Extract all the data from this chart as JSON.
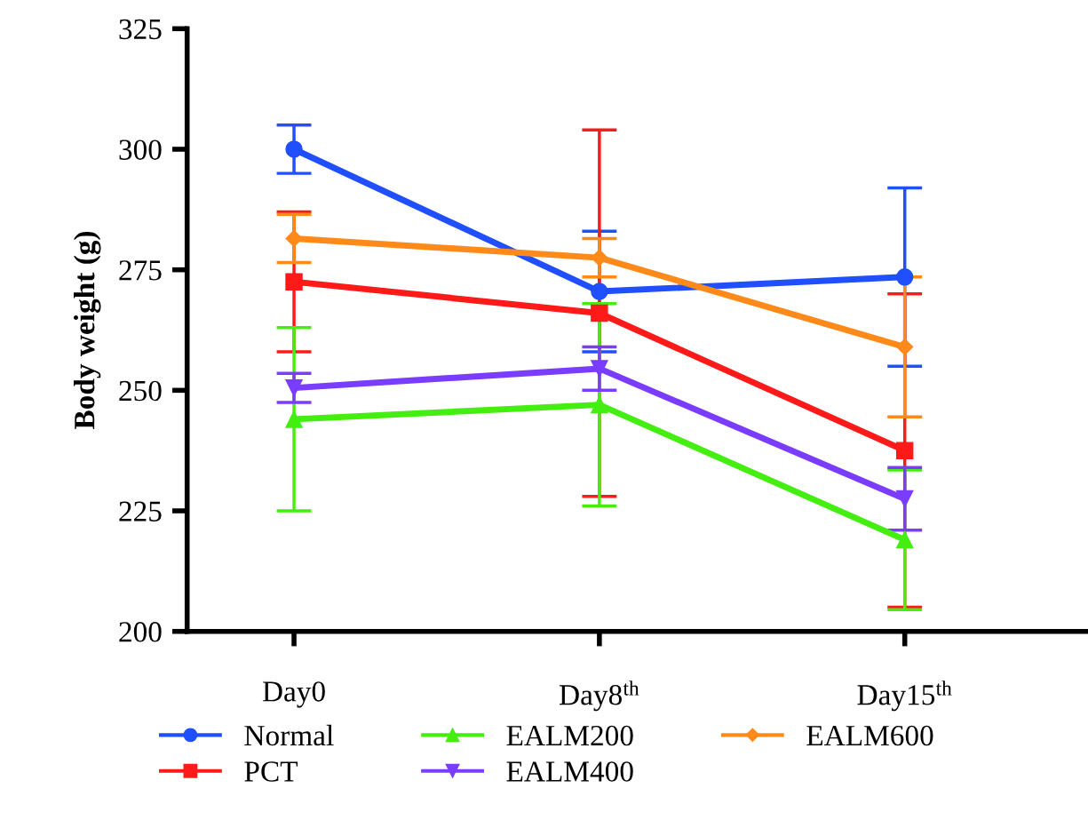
{
  "chart_data": {
    "type": "line",
    "ylabel": "Body weight (g)",
    "categories": [
      "Day0",
      "Day8$^{th}$",
      "Day15$^{th}$"
    ],
    "ylim": [
      200,
      325
    ],
    "yticks": [
      200,
      225,
      250,
      275,
      300,
      325
    ],
    "grid": false,
    "legend": "bottom",
    "series": [
      {
        "name": "Normal",
        "color": "#1f4fff",
        "marker": "circle",
        "values": [
          300,
          270.5,
          273.5
        ],
        "errors": [
          5,
          12.5,
          18.5
        ]
      },
      {
        "name": "PCT",
        "color": "#ff1a1a",
        "marker": "square",
        "values": [
          272.5,
          266,
          237.5
        ],
        "errors": [
          14.5,
          38,
          32.5
        ]
      },
      {
        "name": "EALM200",
        "color": "#44ee11",
        "marker": "triangle",
        "values": [
          244,
          247,
          219
        ],
        "errors": [
          19,
          21,
          14.5
        ]
      },
      {
        "name": "EALM400",
        "color": "#7a3dff",
        "marker": "triangle_down",
        "values": [
          250.5,
          254.5,
          227.5
        ],
        "errors": [
          3,
          4.5,
          6.5
        ]
      },
      {
        "name": "EALM600",
        "color": "#ff8a1a",
        "marker": "diamond",
        "values": [
          281.5,
          277.5,
          259
        ],
        "errors": [
          5,
          4,
          14.5
        ]
      }
    ]
  }
}
